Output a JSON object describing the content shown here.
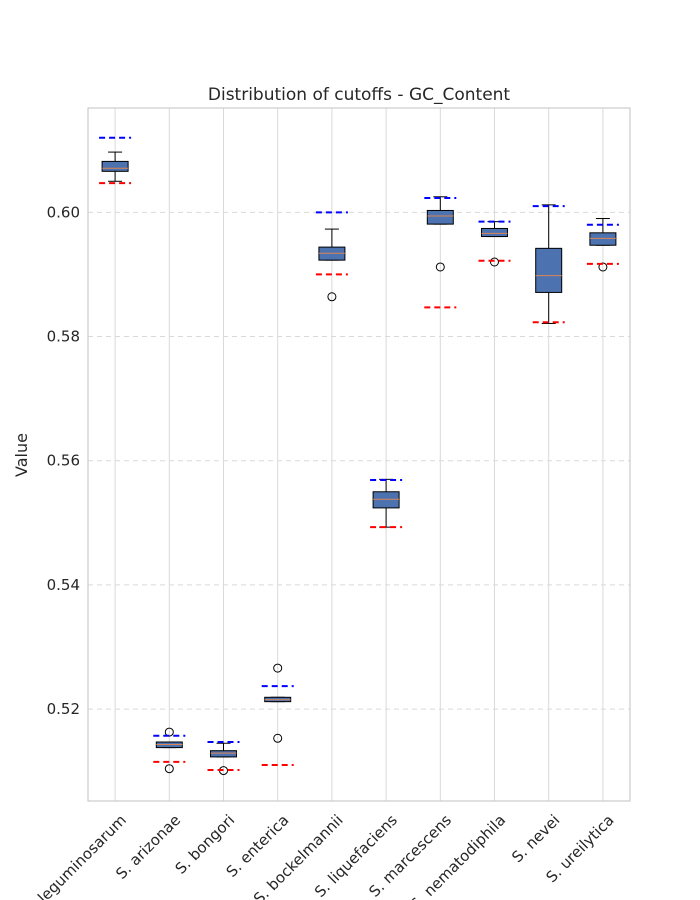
{
  "chart_data": {
    "type": "box",
    "title": "Distribution of cutoffs - GC_Content",
    "xlabel": "",
    "ylabel": "Value",
    "ylim": [
      0.5052,
      0.6168
    ],
    "yticks": [
      0.52,
      0.54,
      0.56,
      0.58,
      0.6
    ],
    "ytick_labels": [
      "0.52",
      "0.54",
      "0.56",
      "0.58",
      "0.60"
    ],
    "grid": true,
    "categories": [
      "S. leguminosarum",
      "S. arizonae",
      "S. bongori",
      "S. enterica",
      "S. bockelmannii",
      "S. liquefaciens",
      "S. marcescens",
      "S. nematodiphila",
      "S. nevei",
      "S. ureilytica"
    ],
    "boxes": [
      {
        "whislo": 0.605,
        "q1": 0.6066,
        "med": 0.6071,
        "q3": 0.6082,
        "whishi": 0.6097,
        "fliers": []
      },
      {
        "whislo": 0.5138,
        "q1": 0.5138,
        "med": 0.5143,
        "q3": 0.5147,
        "whishi": 0.5147,
        "fliers": [
          0.5163,
          0.5104
        ]
      },
      {
        "whislo": 0.5123,
        "q1": 0.5123,
        "med": 0.5129,
        "q3": 0.5133,
        "whishi": 0.5145,
        "fliers": [
          0.5101
        ]
      },
      {
        "whislo": 0.5212,
        "q1": 0.5212,
        "med": 0.5215,
        "q3": 0.5219,
        "whishi": 0.5219,
        "fliers": [
          0.5266,
          0.5153
        ]
      },
      {
        "whislo": 0.5923,
        "q1": 0.5923,
        "med": 0.5934,
        "q3": 0.5944,
        "whishi": 0.5973,
        "fliers": [
          0.5864
        ]
      },
      {
        "whislo": 0.5493,
        "q1": 0.5524,
        "med": 0.5538,
        "q3": 0.555,
        "whishi": 0.557,
        "fliers": []
      },
      {
        "whislo": 0.5981,
        "q1": 0.5981,
        "med": 0.5994,
        "q3": 0.6003,
        "whishi": 0.6025,
        "fliers": [
          0.5912
        ]
      },
      {
        "whislo": 0.5961,
        "q1": 0.5961,
        "med": 0.5966,
        "q3": 0.5974,
        "whishi": 0.5985,
        "fliers": [
          0.592
        ]
      },
      {
        "whislo": 0.5821,
        "q1": 0.5871,
        "med": 0.5898,
        "q3": 0.5942,
        "whishi": 0.6012,
        "fliers": []
      },
      {
        "whislo": 0.5947,
        "q1": 0.5947,
        "med": 0.5958,
        "q3": 0.5967,
        "whishi": 0.599,
        "fliers": [
          0.5912
        ]
      }
    ],
    "upper_lines": [
      0.612,
      0.5157,
      0.5147,
      0.5237,
      0.6,
      0.5569,
      0.6023,
      0.5985,
      0.601,
      0.598
    ],
    "lower_lines": [
      0.6047,
      0.5115,
      0.5102,
      0.511,
      0.59,
      0.5493,
      0.5847,
      0.5922,
      0.5823,
      0.5917
    ],
    "colors": {
      "box_fill": "#4c72b0",
      "median": "#dd8452",
      "upper_line": "#0000ff",
      "lower_line": "#ff0000",
      "grid": "#d9d9d9",
      "frame": "#cccccc",
      "text": "#262626"
    }
  }
}
